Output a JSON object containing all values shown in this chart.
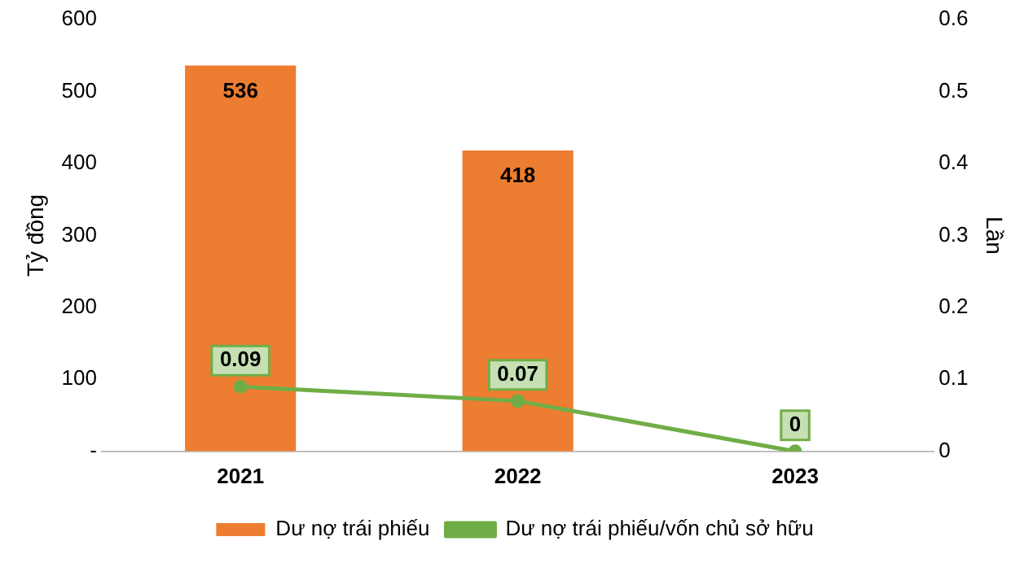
{
  "chart_data": {
    "type": "bar",
    "categories": [
      "2021",
      "2022",
      "2023"
    ],
    "series": [
      {
        "name": "Dư nợ trái phiếu",
        "color": "#ed7d31",
        "values": [
          536,
          418,
          null
        ]
      },
      {
        "name": "Dư nợ trái phiếu/vốn chủ sở hữu",
        "type": "line",
        "axis": "y2",
        "color": "#70ad47",
        "values": [
          0.09,
          0.07,
          0
        ]
      }
    ],
    "ylabel": "Tỷ đồng",
    "y2label": "Lần",
    "ylim": [
      0,
      600
    ],
    "yticks": [
      {
        "value": 0,
        "label": "-"
      },
      100,
      200,
      300,
      400,
      500,
      600
    ],
    "y2lim": [
      0,
      0.6
    ],
    "y2ticks": [
      0,
      0.1,
      0.2,
      0.3,
      0.4,
      0.5,
      0.6
    ],
    "data_labels": true,
    "legend": "bottom",
    "marker": "circle",
    "grid": false
  }
}
